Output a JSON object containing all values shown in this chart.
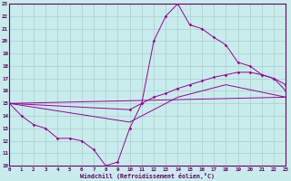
{
  "bg_color": "#c8ecec",
  "grid_color": "#aacccc",
  "line_color": "#990099",
  "spine_color": "#660066",
  "xlabel": "Windchill (Refroidissement éolien,°C)",
  "xlim": [
    0,
    23
  ],
  "ylim": [
    10,
    23
  ],
  "xticks": [
    0,
    1,
    2,
    3,
    4,
    5,
    6,
    7,
    8,
    9,
    10,
    11,
    12,
    13,
    14,
    15,
    16,
    17,
    18,
    19,
    20,
    21,
    22,
    23
  ],
  "yticks": [
    10,
    11,
    12,
    13,
    14,
    15,
    16,
    17,
    18,
    19,
    20,
    21,
    22,
    23
  ],
  "line1_x": [
    0,
    1,
    2,
    3,
    4,
    5,
    6,
    7,
    8,
    9,
    10,
    11,
    12,
    13,
    14,
    15,
    16,
    17,
    18,
    19,
    20,
    21,
    22,
    23
  ],
  "line1_y": [
    15,
    14,
    13.3,
    13,
    12.2,
    12.2,
    12,
    11.3,
    10,
    10.3,
    13,
    15,
    20,
    22,
    23,
    21.3,
    21,
    20.3,
    19.7,
    18.3,
    18,
    17.3,
    17,
    16
  ],
  "line2_x": [
    0,
    10,
    11,
    12,
    13,
    14,
    15,
    16,
    17,
    18,
    19,
    20,
    21,
    22,
    23
  ],
  "line2_y": [
    15,
    14.5,
    15.0,
    15.5,
    15.8,
    16.2,
    16.5,
    16.8,
    17.1,
    17.3,
    17.5,
    17.5,
    17.3,
    17.0,
    16.5
  ],
  "line3_x": [
    0,
    10,
    14,
    18,
    23
  ],
  "line3_y": [
    15,
    13.5,
    15.5,
    16.5,
    15.5
  ],
  "line4_x": [
    0,
    23
  ],
  "line4_y": [
    15,
    15.5
  ]
}
